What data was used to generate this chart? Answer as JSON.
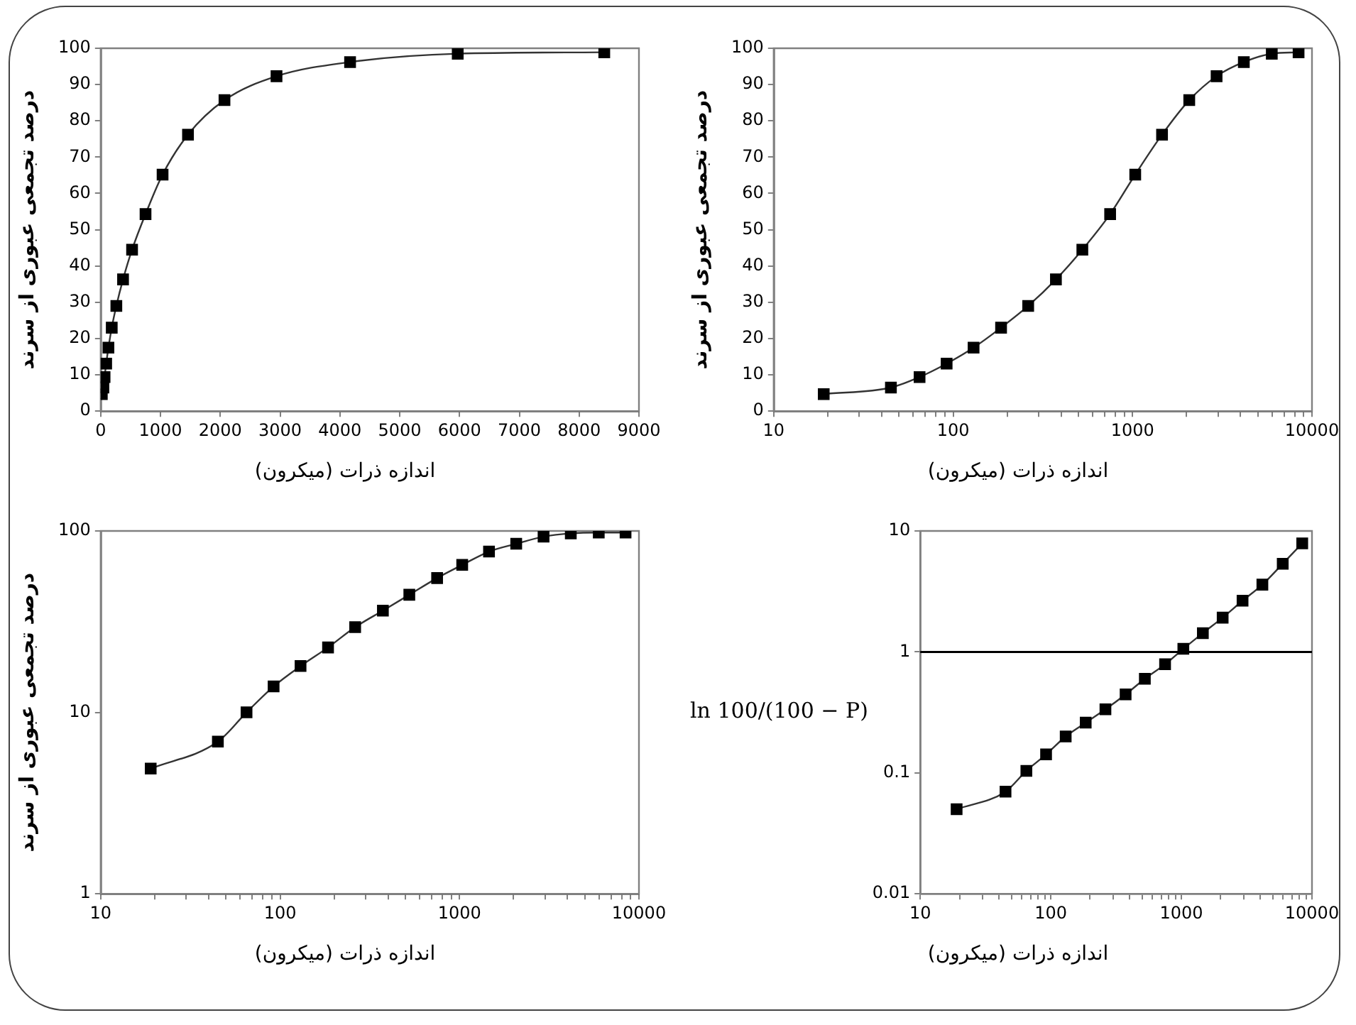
{
  "chart_data": [
    {
      "type": "line",
      "xlabel": "اندازه ذرات (میکرون)",
      "ylabel": "درصد تجمعی عبوری از سرند",
      "marker": "square",
      "grid": false,
      "legend": false,
      "xlim": [
        0,
        9000
      ],
      "xticks": [
        0,
        1000,
        2000,
        3000,
        4000,
        5000,
        6000,
        7000,
        8000,
        9000
      ],
      "ylim": [
        0,
        100
      ],
      "yticks": [
        0,
        10,
        20,
        30,
        40,
        50,
        60,
        70,
        80,
        90,
        100
      ],
      "series": [
        {
          "color": "#000000",
          "x": [
            19,
            45,
            65,
            92,
            130,
            185,
            262,
            374,
            525,
            750,
            1035,
            1460,
            2070,
            2940,
            4170,
            5970,
            8420
          ],
          "values": [
            4.7,
            6.5,
            9.4,
            13.1,
            17.5,
            23,
            29,
            36.3,
            44.5,
            54.3,
            65.2,
            76.2,
            85.7,
            92.3,
            96.2,
            98.5,
            98.9
          ]
        }
      ]
    },
    {
      "type": "line",
      "xlabel": "اندازه ذرات (میکرون)",
      "ylabel": "درصد تجمعی عبوری از سرند",
      "marker": "square",
      "grid": false,
      "legend": false,
      "log": "x",
      "xlim": [
        10,
        10000
      ],
      "xticks": [
        10,
        {
          "value": 20,
          "label": null
        },
        {
          "value": 30,
          "label": null
        },
        {
          "value": 40,
          "label": null
        },
        {
          "value": 50,
          "label": null
        },
        {
          "value": 60,
          "label": null
        },
        {
          "value": 70,
          "label": null
        },
        {
          "value": 80,
          "label": null
        },
        {
          "value": 90,
          "label": null
        },
        100,
        {
          "value": 200,
          "label": null
        },
        {
          "value": 300,
          "label": null
        },
        {
          "value": 400,
          "label": null
        },
        {
          "value": 500,
          "label": null
        },
        {
          "value": 600,
          "label": null
        },
        {
          "value": 700,
          "label": null
        },
        {
          "value": 800,
          "label": null
        },
        {
          "value": 900,
          "label": null
        },
        1000,
        {
          "value": 2000,
          "label": null
        },
        {
          "value": 3000,
          "label": null
        },
        {
          "value": 4000,
          "label": null
        },
        {
          "value": 5000,
          "label": null
        },
        {
          "value": 6000,
          "label": null
        },
        {
          "value": 7000,
          "label": null
        },
        {
          "value": 8000,
          "label": null
        },
        {
          "value": 9000,
          "label": null
        },
        10000
      ],
      "ylim": [
        0,
        100
      ],
      "yticks": [
        0,
        10,
        20,
        30,
        40,
        50,
        60,
        70,
        80,
        90,
        100
      ],
      "series": [
        {
          "color": "#000000",
          "x": [
            19,
            45,
            65,
            92,
            130,
            185,
            262,
            374,
            525,
            750,
            1035,
            1460,
            2070,
            2940,
            4170,
            5970,
            8420
          ],
          "values": [
            4.7,
            6.5,
            9.4,
            13.1,
            17.5,
            23,
            29,
            36.3,
            44.5,
            54.3,
            65.2,
            76.2,
            85.7,
            92.3,
            96.2,
            98.5,
            98.9
          ]
        }
      ]
    },
    {
      "type": "line",
      "xlabel": "اندازه ذرات (میکرون)",
      "ylabel": "درصد تجمعی عبوری از سرند",
      "marker": "square",
      "grid": false,
      "legend": false,
      "log": "xy",
      "xlim": [
        10,
        10000
      ],
      "xticks": [
        10,
        {
          "value": 20,
          "label": null
        },
        {
          "value": 30,
          "label": null
        },
        {
          "value": 40,
          "label": null
        },
        {
          "value": 50,
          "label": null
        },
        {
          "value": 60,
          "label": null
        },
        {
          "value": 70,
          "label": null
        },
        {
          "value": 80,
          "label": null
        },
        {
          "value": 90,
          "label": null
        },
        100,
        {
          "value": 200,
          "label": null
        },
        {
          "value": 300,
          "label": null
        },
        {
          "value": 400,
          "label": null
        },
        {
          "value": 500,
          "label": null
        },
        {
          "value": 600,
          "label": null
        },
        {
          "value": 700,
          "label": null
        },
        {
          "value": 800,
          "label": null
        },
        {
          "value": 900,
          "label": null
        },
        1000,
        {
          "value": 2000,
          "label": null
        },
        {
          "value": 3000,
          "label": null
        },
        {
          "value": 4000,
          "label": null
        },
        {
          "value": 5000,
          "label": null
        },
        {
          "value": 6000,
          "label": null
        },
        {
          "value": 7000,
          "label": null
        },
        {
          "value": 8000,
          "label": null
        },
        {
          "value": 9000,
          "label": null
        },
        10000
      ],
      "ylim": [
        1,
        100
      ],
      "yticks": [
        1,
        10,
        100
      ],
      "series": [
        {
          "color": "#000000",
          "x": [
            19,
            45,
            65,
            92,
            130,
            185,
            262,
            374,
            525,
            750,
            1035,
            1460,
            2070,
            2940,
            4170,
            5970,
            8420
          ],
          "values": [
            4.9,
            6.9,
            10,
            13.9,
            18,
            22.8,
            29.5,
            36.4,
            44.5,
            55,
            65,
            77,
            85,
            93,
            97,
            98,
            98
          ]
        }
      ]
    },
    {
      "type": "line",
      "xlabel": "اندازه ذرات (میکرون)",
      "ylabel": "ln 100/(100 − P)",
      "marker": "square",
      "grid": false,
      "legend": false,
      "log": "xy",
      "xlim": [
        10,
        10000
      ],
      "xticks": [
        10,
        {
          "value": 20,
          "label": null
        },
        {
          "value": 30,
          "label": null
        },
        {
          "value": 40,
          "label": null
        },
        {
          "value": 50,
          "label": null
        },
        {
          "value": 60,
          "label": null
        },
        {
          "value": 70,
          "label": null
        },
        {
          "value": 80,
          "label": null
        },
        {
          "value": 90,
          "label": null
        },
        100,
        {
          "value": 200,
          "label": null
        },
        {
          "value": 300,
          "label": null
        },
        {
          "value": 400,
          "label": null
        },
        {
          "value": 500,
          "label": null
        },
        {
          "value": 600,
          "label": null
        },
        {
          "value": 700,
          "label": null
        },
        {
          "value": 800,
          "label": null
        },
        {
          "value": 900,
          "label": null
        },
        1000,
        {
          "value": 2000,
          "label": null
        },
        {
          "value": 3000,
          "label": null
        },
        {
          "value": 4000,
          "label": null
        },
        {
          "value": 5000,
          "label": null
        },
        {
          "value": 6000,
          "label": null
        },
        {
          "value": 7000,
          "label": null
        },
        {
          "value": 8000,
          "label": null
        },
        {
          "value": 9000,
          "label": null
        },
        10000
      ],
      "ylim": [
        0.01,
        10
      ],
      "yticks": [
        0.01,
        0.1,
        1,
        10
      ],
      "ref_lines": [
        {
          "axis": "y",
          "value": 1
        }
      ],
      "series": [
        {
          "color": "#000000",
          "x": [
            19,
            45,
            65,
            92,
            130,
            185,
            262,
            374,
            525,
            750,
            1035,
            1460,
            2070,
            2940,
            4170,
            5970,
            8420
          ],
          "values": [
            0.05,
            0.07,
            0.104,
            0.142,
            0.2,
            0.26,
            0.335,
            0.445,
            0.6,
            0.79,
            1.06,
            1.43,
            1.92,
            2.65,
            3.6,
            5.36,
            7.9
          ]
        }
      ]
    }
  ]
}
